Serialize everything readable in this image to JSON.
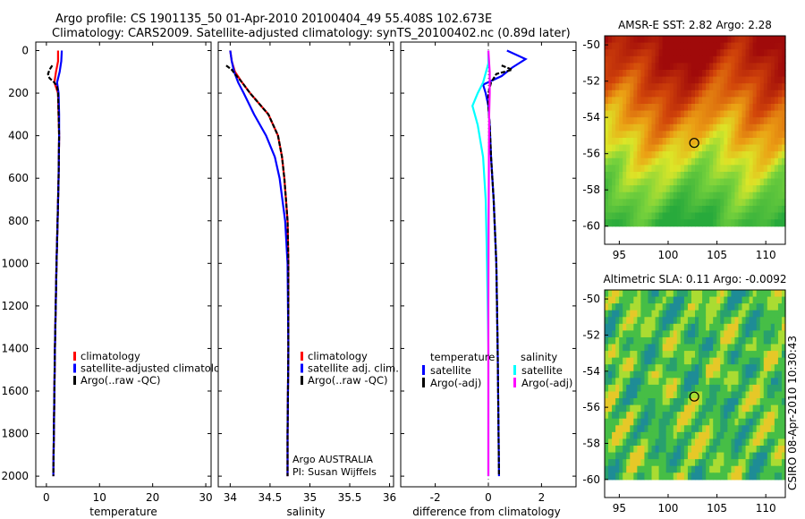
{
  "header": {
    "title_line1": "Argo profile: CS 1901135_50 01-Apr-2010 20100404_49 55.408S 102.673E",
    "title_line2": "Climatology: CARS2009. Satellite-adjusted climatology: synTS_20100402.nc (0.89d later)"
  },
  "timestamp": "CSIRO 08-Apr-2010 10:30:43",
  "colors": {
    "climatology": "#ff0000",
    "satellite": "#0000ff",
    "argo": "#000000",
    "cyan": "#00ffff",
    "magenta": "#ff00ff"
  },
  "chart_data": [
    {
      "type": "line",
      "title": "",
      "xlabel": "temperature",
      "ylabel": "",
      "xlim": [
        -2,
        31
      ],
      "ylim": [
        2050,
        -40
      ],
      "xticks": [
        0,
        10,
        20,
        30
      ],
      "yticks": [
        0,
        200,
        400,
        600,
        800,
        1000,
        1200,
        1400,
        1600,
        1800,
        2000
      ],
      "series": [
        {
          "name": "climatology",
          "color": "#ff0000",
          "depth": [
            0,
            50,
            100,
            150,
            200,
            300,
            400,
            600,
            800,
            1000,
            1400,
            1800,
            2000
          ],
          "values": [
            2.2,
            2.2,
            1.8,
            1.5,
            2.2,
            2.3,
            2.4,
            2.3,
            2.1,
            1.9,
            1.6,
            1.4,
            1.3
          ]
        },
        {
          "name": "satellite-adjusted climatology",
          "color": "#0000ff",
          "depth": [
            0,
            50,
            100,
            150,
            200,
            300,
            400,
            600,
            800,
            1000,
            1400,
            1800,
            2000
          ],
          "values": [
            2.9,
            2.8,
            2.5,
            2.0,
            2.3,
            2.4,
            2.4,
            2.3,
            2.1,
            1.9,
            1.6,
            1.4,
            1.3
          ]
        },
        {
          "name": "Argo(..raw -QC)",
          "color": "#000000",
          "depth": [
            70,
            90,
            110,
            130,
            150,
            170,
            200,
            300,
            400,
            600,
            800,
            1000,
            1400,
            1800,
            2000
          ],
          "values": [
            1.1,
            0.6,
            0.3,
            0.6,
            1.5,
            2.0,
            2.2,
            2.3,
            2.4,
            2.3,
            2.1,
            1.9,
            1.6,
            1.4,
            1.3
          ]
        }
      ],
      "legend": [
        "climatology",
        "satellite-adjusted climatolog",
        "Argo(..raw -QC)"
      ]
    },
    {
      "type": "line",
      "title": "",
      "xlabel": "salinity",
      "ylabel": "",
      "xlim": [
        33.85,
        36.05
      ],
      "ylim": [
        2050,
        -40
      ],
      "xticks": [
        34,
        34.5,
        35,
        35.5,
        36
      ],
      "xticklabels": [
        "34",
        "34.5",
        "35",
        "35.5",
        "36"
      ],
      "series": [
        {
          "name": "climatology",
          "color": "#ff0000",
          "depth": [
            0,
            50,
            100,
            150,
            200,
            300,
            400,
            500,
            600,
            800,
            1000,
            1400,
            1800,
            2000
          ],
          "values": [
            34.0,
            34.02,
            34.06,
            34.15,
            34.25,
            34.48,
            34.6,
            34.65,
            34.68,
            34.72,
            34.73,
            34.73,
            34.72,
            34.72
          ]
        },
        {
          "name": "satellite adj. clim.",
          "color": "#0000ff",
          "depth": [
            0,
            50,
            100,
            150,
            200,
            300,
            400,
            500,
            600,
            800,
            1000,
            1400,
            1800,
            2000
          ],
          "values": [
            34.0,
            34.02,
            34.05,
            34.1,
            34.17,
            34.3,
            34.45,
            34.56,
            34.62,
            34.69,
            34.72,
            34.73,
            34.72,
            34.72
          ]
        },
        {
          "name": "Argo(..raw -QC)",
          "color": "#000000",
          "depth": [
            70,
            90,
            110,
            150,
            200,
            300,
            400,
            500,
            600,
            800,
            1000,
            1400,
            1800,
            2000
          ],
          "values": [
            33.95,
            34.02,
            34.06,
            34.15,
            34.25,
            34.48,
            34.6,
            34.65,
            34.68,
            34.72,
            34.73,
            34.73,
            34.72,
            34.72
          ]
        }
      ],
      "legend": [
        "climatology",
        "satellite adj. clim.",
        "Argo(..raw -QC)"
      ],
      "annotation": [
        "Argo AUSTRALIA",
        "PI: Susan Wijffels"
      ]
    },
    {
      "type": "line",
      "title": "",
      "xlabel": "difference from climatology",
      "ylabel": "",
      "xlim": [
        -3.3,
        3.3
      ],
      "ylim": [
        2050,
        -40
      ],
      "xticks": [
        -2,
        0,
        2
      ],
      "series": [
        {
          "name": "temperature satellite",
          "color": "#0000ff",
          "depth": [
            0,
            40,
            80,
            120,
            160,
            200,
            260,
            350,
            500,
            700,
            1000,
            1400,
            2000
          ],
          "values": [
            0.7,
            1.4,
            0.9,
            0.5,
            -0.2,
            -0.1,
            0.0,
            0.05,
            0.1,
            0.2,
            0.3,
            0.35,
            0.4
          ]
        },
        {
          "name": "temperature Argo(-adj)",
          "color": "#000000",
          "depth": [
            70,
            90,
            110,
            150,
            200,
            260,
            350,
            500,
            700,
            1000,
            1400,
            2000
          ],
          "values": [
            0.5,
            0.9,
            0.3,
            0.1,
            0.0,
            0.0,
            0.05,
            0.1,
            0.2,
            0.3,
            0.35,
            0.4
          ]
        },
        {
          "name": "salinity satellite",
          "color": "#00ffff",
          "depth": [
            0,
            60,
            150,
            200,
            260,
            350,
            500,
            700,
            1000,
            1400,
            2000
          ],
          "values": [
            0.0,
            0.0,
            -0.2,
            -0.4,
            -0.6,
            -0.4,
            -0.2,
            -0.1,
            -0.05,
            0.0,
            0.0
          ]
        },
        {
          "name": "salinity Argo(-adj)",
          "color": "#ff00ff",
          "depth": [
            0,
            100,
            200,
            300,
            500,
            800,
            1200,
            1600,
            2000
          ],
          "values": [
            0.0,
            0.05,
            0.05,
            0.03,
            0.02,
            0.01,
            0.0,
            0.0,
            0.0
          ]
        }
      ],
      "legend_header": [
        "temperature",
        "salinity"
      ],
      "legend": [
        "satellite",
        "Argo(-adj)",
        "satellite",
        "Argo(-adj)"
      ]
    },
    {
      "type": "heatmap",
      "title": "AMSR-E SST: 2.82 Argo: 2.28",
      "xlim": [
        93.5,
        112
      ],
      "ylim": [
        -61,
        -49.5
      ],
      "xticks": [
        95,
        100,
        105,
        110
      ],
      "yticks": [
        -50,
        -52,
        -54,
        -56,
        -58,
        -60
      ],
      "valid_lat_range": [
        -60,
        -49.5
      ],
      "marker": {
        "lon": 102.673,
        "lat": -55.408
      }
    },
    {
      "type": "heatmap",
      "title": "Altimetric SLA: 0.11 Argo: -0.0092",
      "xlim": [
        93.5,
        112
      ],
      "ylim": [
        -61,
        -49.5
      ],
      "xticks": [
        95,
        100,
        105,
        110
      ],
      "yticks": [
        -50,
        -52,
        -54,
        -56,
        -58,
        -60
      ],
      "valid_lat_range": [
        -60,
        -49.5
      ],
      "marker": {
        "lon": 102.673,
        "lat": -55.408
      }
    }
  ]
}
